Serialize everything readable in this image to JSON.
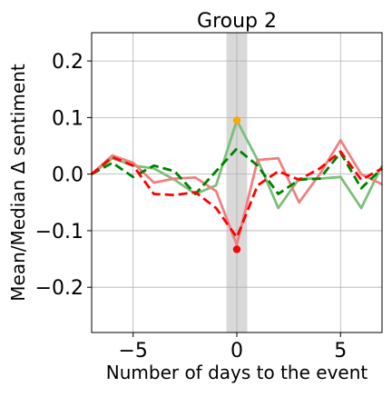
{
  "chart_data": {
    "type": "line",
    "title": "Group 2",
    "xlabel": "Number of days to the event",
    "ylabel": "Mean/Median Δ sentiment",
    "xlim": [
      -7,
      7
    ],
    "ylim": [
      -0.28,
      0.25
    ],
    "xticks": [
      -5,
      0,
      5
    ],
    "xtick_labels": [
      "−5",
      "0",
      "5"
    ],
    "yticks": [
      0.2,
      0.1,
      0.0,
      -0.1,
      -0.2
    ],
    "ytick_labels": [
      "0.2",
      "0.1",
      "0.0",
      "−0.1",
      "−0.2"
    ],
    "grid": true,
    "legend": "none",
    "highlight_band": {
      "x_from": -0.5,
      "x_to": 0.5,
      "color": "#d9d9d9"
    },
    "x": [
      -7,
      -6,
      -5,
      -4,
      -3,
      -2,
      -1,
      0,
      1,
      2,
      3,
      4,
      5,
      6,
      7
    ],
    "series": [
      {
        "style": "solid",
        "color": "#7cbf7c",
        "values": [
          0.0,
          0.028,
          0.015,
          0.01,
          -0.01,
          -0.035,
          -0.02,
          0.095,
          0.025,
          -0.06,
          -0.008,
          -0.008,
          -0.005,
          -0.06,
          0.015
        ]
      },
      {
        "style": "solid",
        "color": "#f08080",
        "values": [
          0.0,
          0.033,
          0.02,
          -0.015,
          -0.008,
          -0.006,
          -0.03,
          -0.125,
          0.025,
          0.028,
          -0.05,
          0.0,
          0.06,
          0.0,
          -0.018
        ]
      },
      {
        "style": "dashed",
        "color": "#008000",
        "values": [
          0.0,
          0.02,
          -0.005,
          0.015,
          0.005,
          -0.035,
          0.005,
          0.045,
          0.015,
          -0.035,
          -0.01,
          -0.008,
          0.038,
          -0.025,
          0.01
        ]
      },
      {
        "style": "dashed",
        "color": "#ff0000",
        "values": [
          0.0,
          0.03,
          0.015,
          -0.035,
          -0.037,
          -0.032,
          -0.06,
          -0.112,
          -0.02,
          0.005,
          -0.01,
          0.01,
          0.04,
          -0.01,
          0.01
        ]
      }
    ],
    "markers": [
      {
        "x": 0,
        "y": 0.095,
        "color": "#ffa500"
      },
      {
        "x": 0,
        "y": -0.133,
        "color": "#ff0000"
      }
    ]
  }
}
